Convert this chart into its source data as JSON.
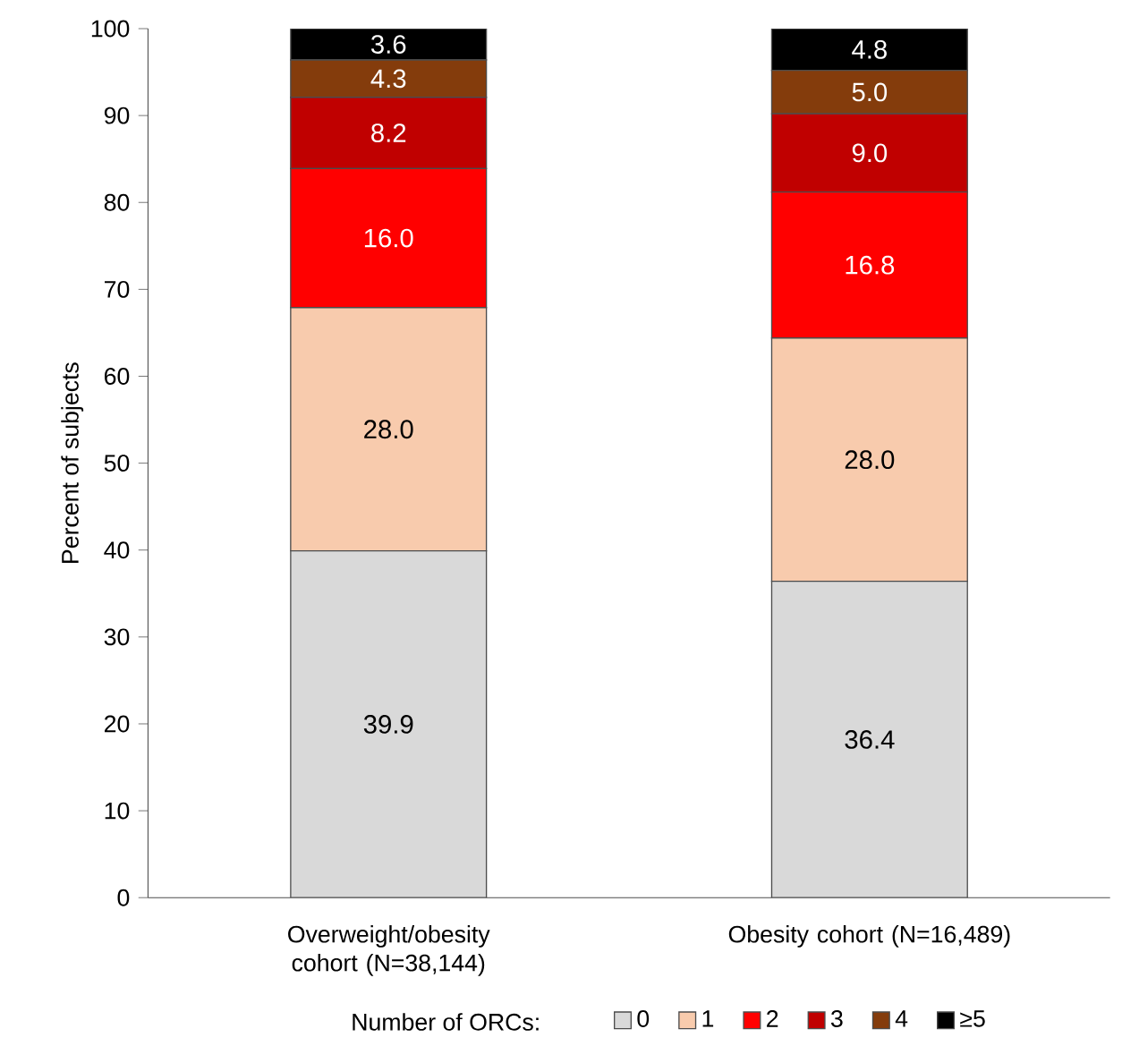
{
  "chart_data": {
    "type": "bar",
    "stacked": true,
    "ylabel": "Percent of subjects",
    "legend_title": "Number of ORCs:",
    "legend": "bottom",
    "categories": [
      "Overweight/obesity cohort (N=38,144)",
      "Obesity cohort (N=16,489)"
    ],
    "ylim": [
      0,
      100
    ],
    "yticks": [
      0,
      10,
      20,
      30,
      40,
      50,
      60,
      70,
      80,
      90,
      100
    ],
    "series": [
      {
        "name": "0",
        "color": "#d9d9d9",
        "values": [
          39.9,
          36.4
        ],
        "value_labels": [
          "39.9",
          "36.4"
        ]
      },
      {
        "name": "1",
        "color": "#f8cbad",
        "values": [
          28.0,
          28.0
        ],
        "value_labels": [
          "28.0",
          "28.0"
        ]
      },
      {
        "name": "2",
        "color": "#ff0000",
        "values": [
          16.0,
          16.8
        ],
        "value_labels": [
          "16.0",
          "16.8"
        ]
      },
      {
        "name": "3",
        "color": "#c00000",
        "values": [
          8.2,
          9.0
        ],
        "value_labels": [
          "8.2",
          "9.0"
        ]
      },
      {
        "name": "4",
        "color": "#843c0c",
        "values": [
          4.3,
          5.0
        ],
        "value_labels": [
          "4.3",
          "5.0"
        ]
      },
      {
        "name": "≥5",
        "color": "#000000",
        "values": [
          3.6,
          4.8
        ],
        "value_labels": [
          "3.6",
          "4.8"
        ]
      }
    ]
  }
}
